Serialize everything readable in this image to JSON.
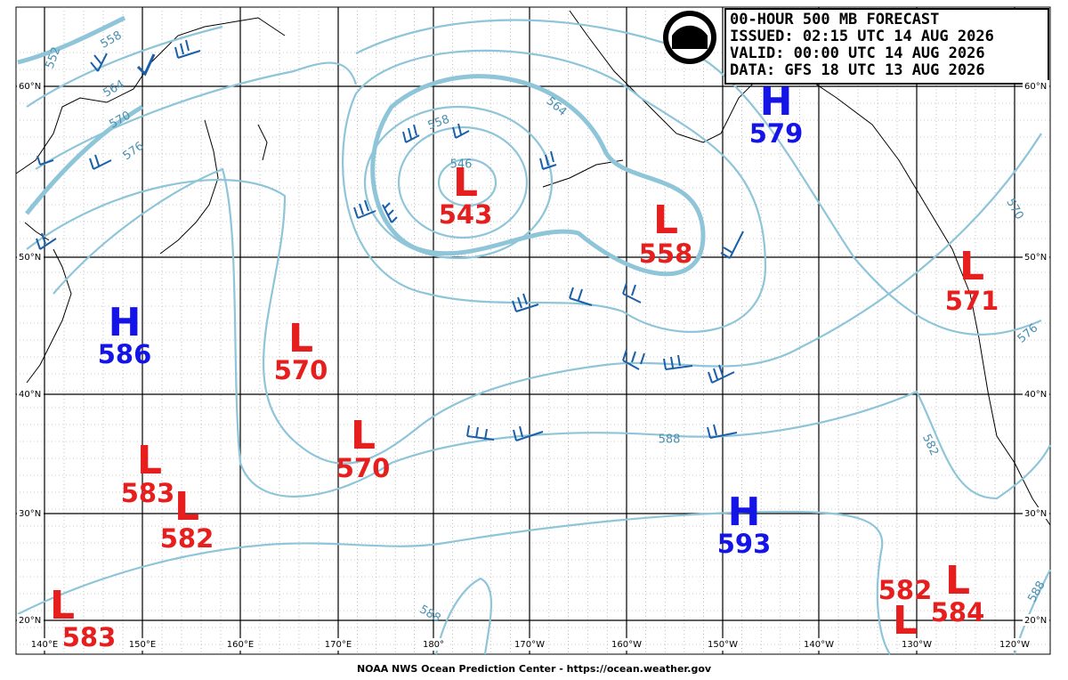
{
  "header": {
    "lines": [
      "00-HOUR 500 MB FORECAST",
      "ISSUED: 02:15 UTC 14 AUG 2026",
      "VALID:  00:00 UTC 14 AUG 2026",
      "DATA:  GFS 18 UTC 13 AUG 2026"
    ]
  },
  "centers": [
    {
      "symbol": "H",
      "value": 586
    },
    {
      "symbol": "L",
      "value": 570
    },
    {
      "symbol": "L",
      "value": 543
    },
    {
      "symbol": "L",
      "value": 558
    },
    {
      "symbol": "H",
      "value": 579
    },
    {
      "symbol": "L",
      "value": 571
    },
    {
      "symbol": "L",
      "value": 570
    },
    {
      "symbol": "L",
      "value": 583
    },
    {
      "symbol": "L",
      "value": 582
    },
    {
      "symbol": "H",
      "value": 593
    },
    {
      "symbol": "L",
      "value": 583
    },
    {
      "symbol": "L",
      "value": 582
    },
    {
      "symbol": "L",
      "value": 584
    }
  ],
  "latitude_labels": [
    "60°N",
    "50°N",
    "40°N",
    "30°N",
    "20°N"
  ],
  "longitude_labels": [
    "140°E",
    "150°E",
    "160°E",
    "170°E",
    "180°",
    "170°W",
    "160°W",
    "150°W",
    "140°W",
    "130°W",
    "120°W"
  ],
  "contour_labels": [
    552,
    558,
    564,
    570,
    576,
    558,
    546,
    564,
    588,
    582,
    576,
    570,
    588,
    588
  ],
  "footer": "NOAA NWS Ocean Prediction Center - https://ocean.weather.gov"
}
